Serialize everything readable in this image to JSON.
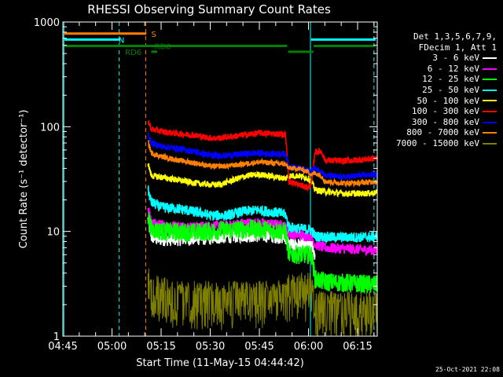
{
  "chart_data": {
    "type": "line",
    "title": "RHESSI Observing Summary Count Rates",
    "xlabel": "Start Time (11-May-15 04:44:42)",
    "ylabel": "Count Rate (s⁻¹ detector⁻¹)",
    "y_scale": "log",
    "ylim": [
      1,
      1000
    ],
    "xlim_minutes": [
      0,
      96
    ],
    "x_ticks": [
      {
        "t": 0,
        "label": "04:45"
      },
      {
        "t": 15,
        "label": "05:00"
      },
      {
        "t": 30,
        "label": "05:15"
      },
      {
        "t": 45,
        "label": "05:30"
      },
      {
        "t": 60,
        "label": "05:45"
      },
      {
        "t": 75,
        "label": "06:00"
      },
      {
        "t": 90,
        "label": "06:15"
      }
    ],
    "y_ticks": [
      {
        "v": 1,
        "label": "1"
      },
      {
        "v": 10,
        "label": "10"
      },
      {
        "v": 100,
        "label": "100"
      },
      {
        "v": 1000,
        "label": "1000"
      }
    ],
    "flags": [
      {
        "label": "S",
        "color": "#ff8000",
        "level": 775,
        "segments": [
          [
            0.5,
            25.5
          ]
        ],
        "label_t": 27
      },
      {
        "label": "N",
        "color": "#00ffff",
        "level": 680,
        "segments": [
          [
            0.5,
            17.5
          ],
          [
            75.8,
            95.5
          ]
        ],
        "label_t": 17
      },
      {
        "label": "RD0",
        "color": "#008000",
        "level": 590,
        "segments": [
          [
            0.5,
            68.5
          ],
          [
            76.5,
            95.5
          ]
        ],
        "label_t": 28
      },
      {
        "label": "RD6",
        "color": "#008000",
        "level": 520,
        "segments": [
          [
            27,
            28.8
          ],
          [
            68.8,
            76.5
          ]
        ],
        "label_t": 19
      }
    ],
    "vlines": [
      {
        "t": 0.3,
        "color": "#00ffff",
        "dashed": false
      },
      {
        "t": 17.2,
        "color": "#00ffff",
        "dashed": true
      },
      {
        "t": 25.3,
        "color": "#ff8000",
        "dashed": true
      },
      {
        "t": 75.6,
        "color": "#00ffff",
        "dashed": false
      },
      {
        "t": 95,
        "color": "#00ffff",
        "dashed": true
      }
    ],
    "legend_header": [
      "Det 1,3,5,6,7,9,",
      "FDecim 1, Att 1"
    ],
    "series": [
      {
        "name": "3 - 6 keV",
        "color": "#ffffff",
        "noise": 0.07,
        "points": [
          [
            26,
            13
          ],
          [
            27,
            9
          ],
          [
            29,
            8.5
          ],
          [
            35,
            8.5
          ],
          [
            45,
            8.7
          ],
          [
            50,
            9
          ],
          [
            55,
            9.2
          ],
          [
            62,
            9.2
          ],
          [
            68,
            8.8
          ],
          [
            69,
            7.5
          ],
          [
            76,
            7.2
          ],
          [
            77,
            6
          ]
        ]
      },
      {
        "name": "6 - 12 keV",
        "color": "#ff00ff",
        "noise": 0.05,
        "points": [
          [
            26,
            17
          ],
          [
            27,
            12
          ],
          [
            30,
            11.5
          ],
          [
            40,
            11
          ],
          [
            45,
            11.3
          ],
          [
            50,
            11.3
          ],
          [
            55,
            12
          ],
          [
            60,
            12
          ],
          [
            65,
            11.6
          ],
          [
            68,
            11.2
          ],
          [
            69,
            9.5
          ],
          [
            76,
            9
          ],
          [
            77,
            7.5
          ],
          [
            80,
            7
          ],
          [
            88,
            6.8
          ],
          [
            96,
            6.6
          ]
        ]
      },
      {
        "name": "12 - 25 keV",
        "color": "#00ff00",
        "noise": 0.09,
        "points": [
          [
            26,
            14
          ],
          [
            27,
            10.5
          ],
          [
            30,
            10
          ],
          [
            40,
            9.8
          ],
          [
            45,
            10
          ],
          [
            50,
            10.3
          ],
          [
            55,
            10.5
          ],
          [
            60,
            10.5
          ],
          [
            65,
            10.2
          ],
          [
            68,
            10
          ],
          [
            69,
            6
          ],
          [
            76,
            6
          ],
          [
            77,
            3.5
          ],
          [
            80,
            3.3
          ],
          [
            88,
            3.2
          ],
          [
            96,
            3.1
          ]
        ]
      },
      {
        "name": "25 - 50 keV",
        "color": "#00ffff",
        "noise": 0.05,
        "points": [
          [
            26,
            25
          ],
          [
            27,
            19
          ],
          [
            30,
            17
          ],
          [
            35,
            16.5
          ],
          [
            42,
            15
          ],
          [
            45,
            14.2
          ],
          [
            50,
            14.2
          ],
          [
            55,
            15.5
          ],
          [
            60,
            16
          ],
          [
            65,
            15.2
          ],
          [
            68,
            14.5
          ],
          [
            69,
            11
          ],
          [
            74,
            10.5
          ],
          [
            76,
            10.3
          ],
          [
            77,
            9
          ],
          [
            82,
            8.8
          ],
          [
            90,
            8.8
          ],
          [
            96,
            8.9
          ]
        ]
      },
      {
        "name": "50 - 100 keV",
        "color": "#ffff00",
        "noise": 0.03,
        "points": [
          [
            26,
            45
          ],
          [
            27,
            34
          ],
          [
            30,
            33
          ],
          [
            35,
            31
          ],
          [
            42,
            28.5
          ],
          [
            45,
            28
          ],
          [
            48,
            28
          ],
          [
            52,
            31
          ],
          [
            56,
            34
          ],
          [
            60,
            35
          ],
          [
            64,
            33.5
          ],
          [
            68,
            32
          ],
          [
            69,
            34
          ],
          [
            72,
            34
          ],
          [
            75,
            32
          ],
          [
            76,
            30
          ],
          [
            77,
            25
          ],
          [
            80,
            24
          ],
          [
            86,
            23
          ],
          [
            92,
            23
          ],
          [
            96,
            23.5
          ]
        ]
      },
      {
        "name": "100 - 300 keV",
        "color": "#ff0000",
        "noise": 0.03,
        "points": [
          [
            26,
            115
          ],
          [
            27,
            95
          ],
          [
            30,
            90
          ],
          [
            35,
            86
          ],
          [
            40,
            83
          ],
          [
            45,
            78
          ],
          [
            48,
            78
          ],
          [
            52,
            81
          ],
          [
            56,
            84
          ],
          [
            60,
            87
          ],
          [
            64,
            86
          ],
          [
            68,
            84
          ],
          [
            69,
            30
          ],
          [
            72,
            28
          ],
          [
            75,
            26
          ],
          [
            76,
            30
          ],
          [
            77,
            58
          ],
          [
            79,
            58
          ],
          [
            80,
            48
          ],
          [
            85,
            47
          ],
          [
            90,
            48
          ],
          [
            96,
            50
          ]
        ]
      },
      {
        "name": "300 - 800 keV",
        "color": "#0000ff",
        "noise": 0.03,
        "points": [
          [
            26,
            85
          ],
          [
            27,
            70
          ],
          [
            30,
            65
          ],
          [
            35,
            62
          ],
          [
            40,
            58
          ],
          [
            45,
            53
          ],
          [
            50,
            53
          ],
          [
            55,
            55
          ],
          [
            60,
            56
          ],
          [
            64,
            55
          ],
          [
            68,
            55
          ],
          [
            69,
            42
          ],
          [
            72,
            40
          ],
          [
            75,
            38
          ],
          [
            76,
            38
          ],
          [
            77,
            40
          ],
          [
            79,
            38
          ],
          [
            80,
            34
          ],
          [
            85,
            33
          ],
          [
            90,
            34
          ],
          [
            96,
            35
          ]
        ]
      },
      {
        "name": "800 - 7000 keV",
        "color": "#ff8000",
        "noise": 0.025,
        "points": [
          [
            26,
            72
          ],
          [
            27,
            56
          ],
          [
            30,
            52
          ],
          [
            35,
            48
          ],
          [
            42,
            44
          ],
          [
            45,
            42
          ],
          [
            50,
            42
          ],
          [
            55,
            44
          ],
          [
            60,
            46
          ],
          [
            64,
            45
          ],
          [
            68,
            44
          ],
          [
            69,
            40
          ],
          [
            72,
            40
          ],
          [
            75,
            37
          ],
          [
            76,
            35
          ],
          [
            77,
            36
          ],
          [
            79,
            34
          ],
          [
            80,
            30
          ],
          [
            85,
            29
          ],
          [
            90,
            29
          ],
          [
            96,
            30
          ]
        ]
      },
      {
        "name": "7000 - 15000 keV",
        "color": "#808000",
        "noise": 0,
        "points": [
          [
            26,
            3.5
          ],
          [
            27,
            3
          ],
          [
            35,
            2.5
          ],
          [
            50,
            2.5
          ],
          [
            60,
            2.6
          ],
          [
            68,
            2.5
          ],
          [
            69,
            3
          ],
          [
            76,
            3
          ],
          [
            77,
            2
          ],
          [
            90,
            2
          ],
          [
            96,
            2
          ]
        ]
      }
    ]
  },
  "footer": {
    "timestamp": "25-Oct-2021 22:08"
  }
}
